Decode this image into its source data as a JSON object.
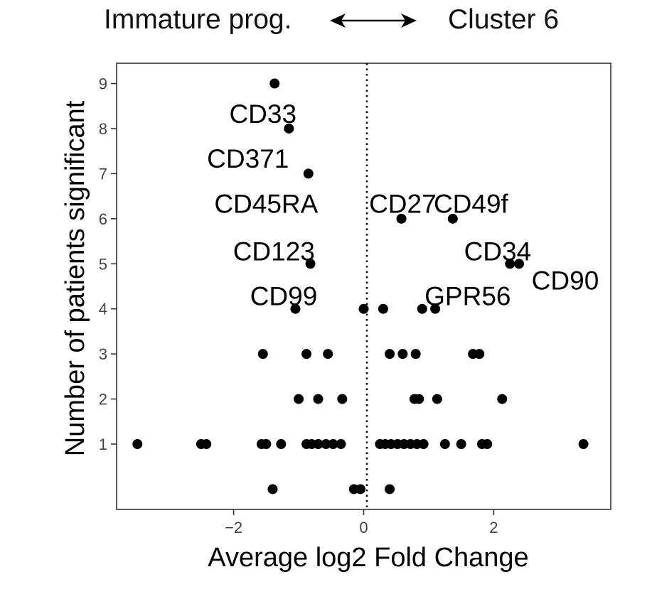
{
  "header": {
    "left_label": "Immature prog.",
    "right_label": "Cluster 6"
  },
  "chart_data": {
    "type": "scatter",
    "title": "",
    "xlabel": "Average log2 Fold Change",
    "ylabel": "Number of patients significant",
    "xlim": [
      -3.8,
      3.8
    ],
    "ylim": [
      -0.45,
      9.45
    ],
    "xticks": [
      -2,
      0,
      2
    ],
    "xtick_labels": [
      "−2",
      "0",
      "2"
    ],
    "yticks": [
      1,
      2,
      3,
      4,
      5,
      6,
      7,
      8,
      9
    ],
    "ytick_labels": [
      "1",
      "2",
      "3",
      "4",
      "5",
      "6",
      "7",
      "8",
      "9"
    ],
    "grid": false,
    "reference_line": {
      "x": 0,
      "style": "dotted"
    },
    "colors": {
      "point": "#000000",
      "axis": "#333333"
    },
    "points": [
      {
        "x": -1.37,
        "y": 9
      },
      {
        "x": -1.15,
        "y": 8
      },
      {
        "x": -0.85,
        "y": 7
      },
      {
        "x": 0.58,
        "y": 6
      },
      {
        "x": 1.37,
        "y": 6
      },
      {
        "x": -0.82,
        "y": 5
      },
      {
        "x": 2.25,
        "y": 5
      },
      {
        "x": 2.39,
        "y": 5
      },
      {
        "x": -1.05,
        "y": 4
      },
      {
        "x": 0.0,
        "y": 4
      },
      {
        "x": 0.3,
        "y": 4
      },
      {
        "x": 0.9,
        "y": 4
      },
      {
        "x": 1.1,
        "y": 4
      },
      {
        "x": -1.55,
        "y": 3
      },
      {
        "x": -0.88,
        "y": 3
      },
      {
        "x": -0.55,
        "y": 3
      },
      {
        "x": 0.4,
        "y": 3
      },
      {
        "x": 0.6,
        "y": 3
      },
      {
        "x": 0.8,
        "y": 3
      },
      {
        "x": 1.68,
        "y": 3
      },
      {
        "x": 1.78,
        "y": 3
      },
      {
        "x": -1.0,
        "y": 2
      },
      {
        "x": -0.7,
        "y": 2
      },
      {
        "x": -0.33,
        "y": 2
      },
      {
        "x": 0.78,
        "y": 2
      },
      {
        "x": 0.85,
        "y": 2
      },
      {
        "x": 1.13,
        "y": 2
      },
      {
        "x": 2.13,
        "y": 2
      },
      {
        "x": -3.48,
        "y": 1
      },
      {
        "x": -2.5,
        "y": 1
      },
      {
        "x": -2.42,
        "y": 1
      },
      {
        "x": -1.57,
        "y": 1
      },
      {
        "x": -1.5,
        "y": 1
      },
      {
        "x": -1.27,
        "y": 1
      },
      {
        "x": -0.88,
        "y": 1
      },
      {
        "x": -0.8,
        "y": 1
      },
      {
        "x": -0.7,
        "y": 1
      },
      {
        "x": -0.58,
        "y": 1
      },
      {
        "x": -0.47,
        "y": 1
      },
      {
        "x": -0.35,
        "y": 1
      },
      {
        "x": 0.25,
        "y": 1
      },
      {
        "x": 0.33,
        "y": 1
      },
      {
        "x": 0.42,
        "y": 1
      },
      {
        "x": 0.52,
        "y": 1
      },
      {
        "x": 0.62,
        "y": 1
      },
      {
        "x": 0.72,
        "y": 1
      },
      {
        "x": 0.82,
        "y": 1
      },
      {
        "x": 0.92,
        "y": 1
      },
      {
        "x": 1.25,
        "y": 1
      },
      {
        "x": 1.5,
        "y": 1
      },
      {
        "x": 1.82,
        "y": 1
      },
      {
        "x": 1.9,
        "y": 1
      },
      {
        "x": 3.38,
        "y": 1
      },
      {
        "x": -1.4,
        "y": 0
      },
      {
        "x": -0.15,
        "y": 0
      },
      {
        "x": -0.05,
        "y": 0
      },
      {
        "x": 0.4,
        "y": 0
      }
    ],
    "annotations": [
      {
        "text": "CD33",
        "x": -1.55,
        "y": 8.35
      },
      {
        "text": "CD371",
        "x": -1.78,
        "y": 7.35
      },
      {
        "text": "CD45RA",
        "x": -1.5,
        "y": 6.35
      },
      {
        "text": "CD123",
        "x": -1.38,
        "y": 5.3
      },
      {
        "text": "CD99",
        "x": -1.23,
        "y": 4.3
      },
      {
        "text": "CD27",
        "x": 0.6,
        "y": 6.35
      },
      {
        "text": "CD49f",
        "x": 1.65,
        "y": 6.35
      },
      {
        "text": "CD34",
        "x": 2.06,
        "y": 5.3
      },
      {
        "text": "GPR56",
        "x": 1.6,
        "y": 4.3
      },
      {
        "text": "CD90",
        "x": 3.1,
        "y": 4.65
      }
    ]
  }
}
